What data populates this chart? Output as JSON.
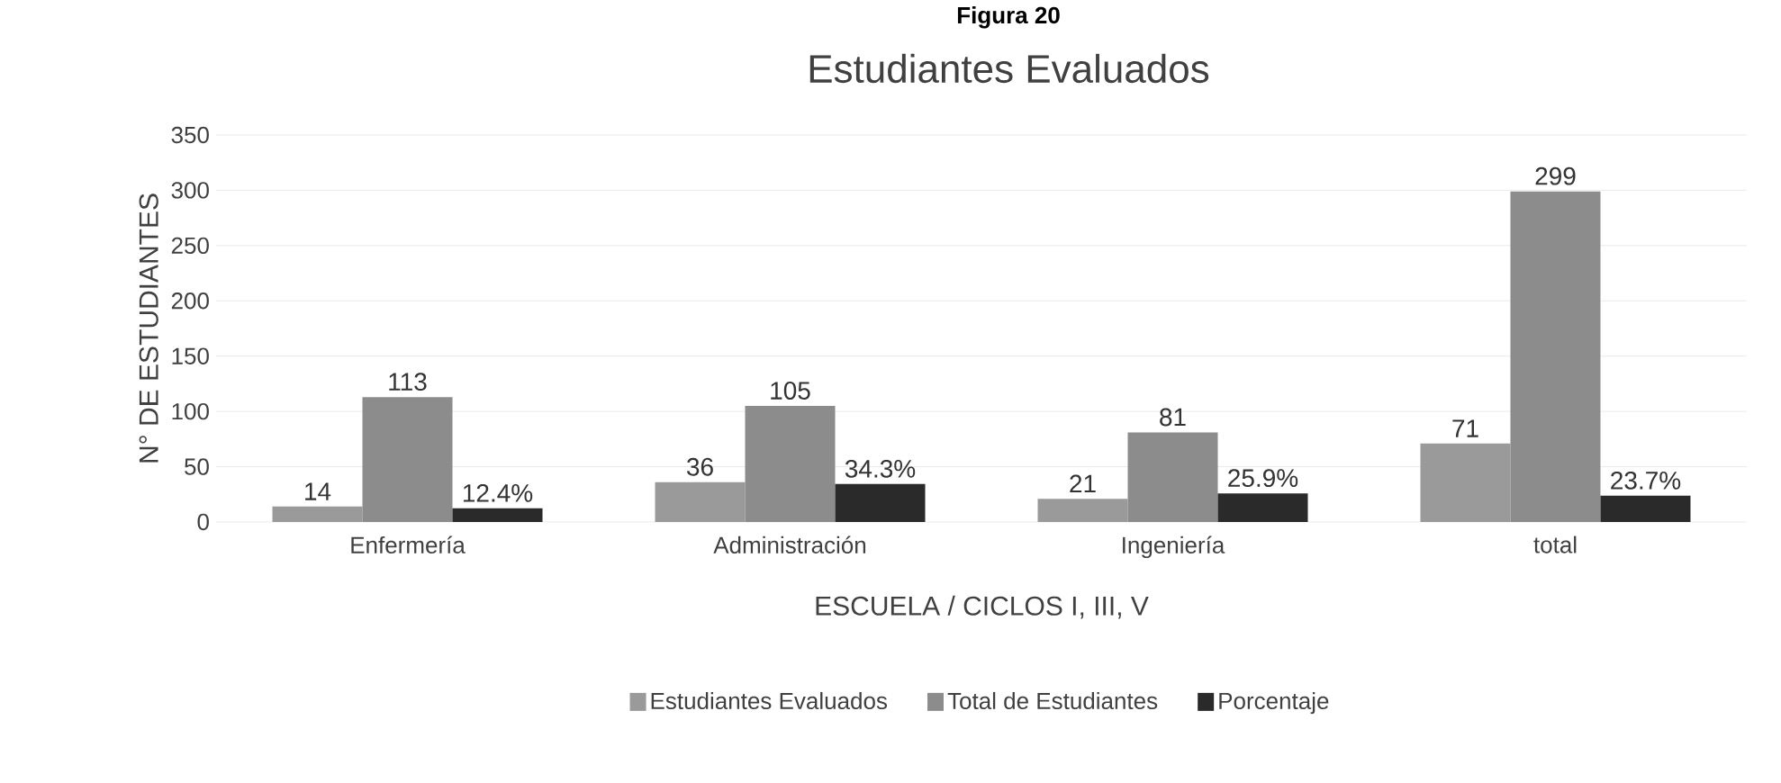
{
  "chart_data": {
    "type": "bar",
    "title": "Estudiantes Evaluados",
    "annotations": [
      "Figura 20"
    ],
    "xlabel": "ESCUELA / CICLOS I, III, V",
    "ylabel": "N° DE ESTUDIANTES",
    "categories": [
      "Enfermería",
      "Administración",
      "Ingeniería",
      "total"
    ],
    "series": [
      {
        "name": "Estudiantes Evaluados",
        "color": "#9a9a9a",
        "values": [
          14,
          36,
          21,
          71
        ],
        "value_labels": [
          "14",
          "36",
          "21",
          "71"
        ]
      },
      {
        "name": "Total de Estudiantes",
        "color": "#8c8c8c",
        "values": [
          113,
          105,
          81,
          299
        ],
        "value_labels": [
          "113",
          "105",
          "81",
          "299"
        ]
      },
      {
        "name": "Porcentaje",
        "color": "#2a2a2a",
        "values": [
          12.4,
          34.3,
          25.9,
          23.7
        ],
        "value_labels": [
          "12.4%",
          "34.3%",
          "25.9%",
          "23.7%"
        ]
      }
    ],
    "ylim": [
      0,
      350
    ],
    "yticks": [
      0,
      50,
      100,
      150,
      200,
      250,
      300,
      350
    ],
    "grid": "y",
    "legend": "bottom"
  }
}
